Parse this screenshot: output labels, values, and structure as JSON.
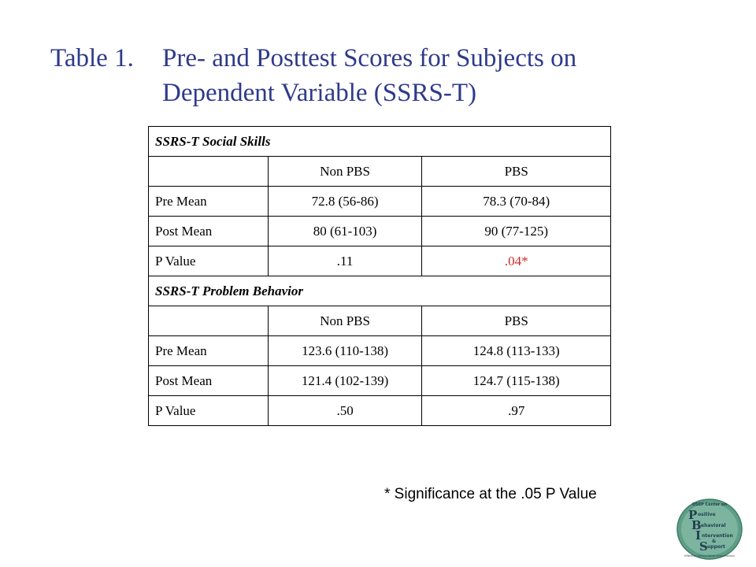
{
  "title": {
    "number": "Table 1.",
    "line1": "Pre- and Posttest Scores for Subjects on",
    "line2": "Dependent Variable (SSRS-T)"
  },
  "table": {
    "sections": [
      {
        "heading": "SSRS-T Social Skills",
        "columns": [
          "",
          "Non PBS",
          "PBS"
        ],
        "rows": [
          {
            "label": "Pre Mean",
            "non_pbs": "72.8 (56-86)",
            "pbs": "78.3 (70-84)"
          },
          {
            "label": "Post Mean",
            "non_pbs": "80 (61-103)",
            "pbs": "90 (77-125)"
          },
          {
            "label": "P Value",
            "non_pbs": ".11",
            "pbs": ".04*"
          }
        ]
      },
      {
        "heading": "SSRS-T Problem Behavior",
        "columns": [
          "",
          "Non PBS",
          "PBS"
        ],
        "rows": [
          {
            "label": "Pre Mean",
            "non_pbs": "123.6 (110-138)",
            "pbs": "124.8 (113-133)"
          },
          {
            "label": "Post Mean",
            "non_pbs": "121.4 (102-139)",
            "pbs": "124.7 (115-138)"
          },
          {
            "label": "P Value",
            "non_pbs": ".50",
            "pbs": ".97"
          }
        ]
      }
    ]
  },
  "footnote": "* Significance at the .05 P Value",
  "logo": {
    "top_text": "OSEP Center on",
    "words": [
      "ositive",
      "ehavioral",
      "ntervention",
      "&",
      "upport"
    ],
    "initials": [
      "P",
      "B",
      "I",
      "S"
    ],
    "tagline": "Effective School-Wide Interventions"
  },
  "colors": {
    "title": "#2e3a8a",
    "significant": "#cc2a2a",
    "logo_green": "#5e9e86",
    "logo_dark": "#1f3f4e"
  }
}
